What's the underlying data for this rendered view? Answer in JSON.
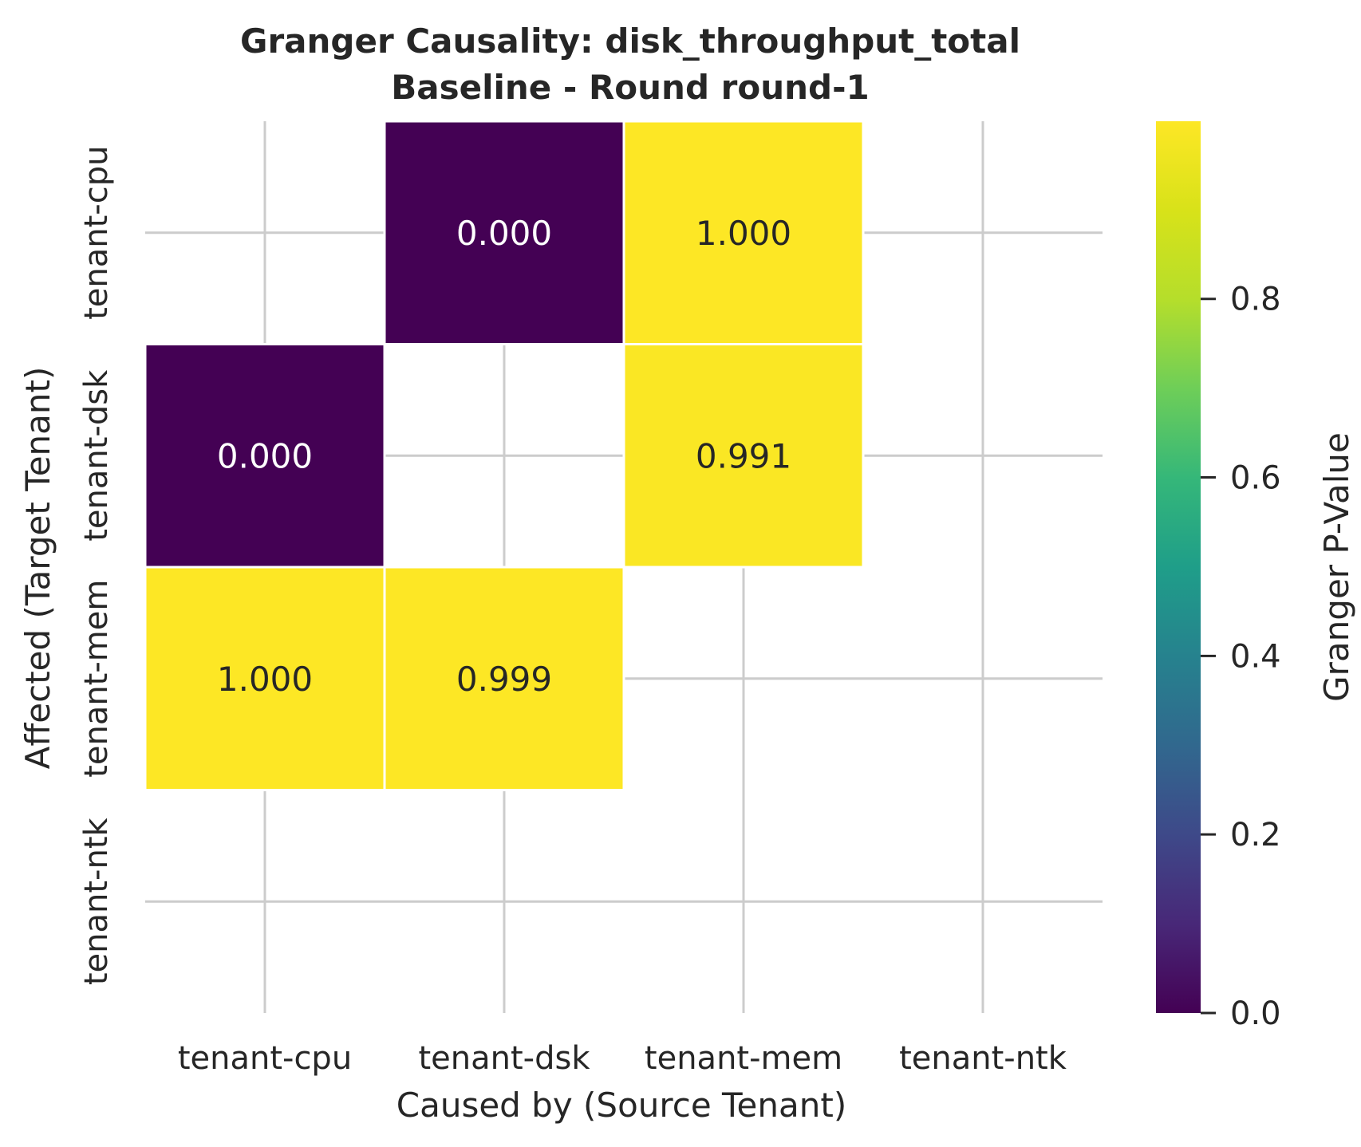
{
  "chart_data": {
    "type": "heatmap",
    "title": "Granger Causality: disk_throughput_total",
    "subtitle": "Baseline - Round round-1",
    "xlabel": "Caused by (Source Tenant)",
    "ylabel": "Affected (Target Tenant)",
    "x_categories": [
      "tenant-cpu",
      "tenant-dsk",
      "tenant-mem",
      "tenant-ntk"
    ],
    "y_categories": [
      "tenant-cpu",
      "tenant-dsk",
      "tenant-mem",
      "tenant-ntk"
    ],
    "values": [
      [
        null,
        0.0,
        1.0,
        null
      ],
      [
        0.0,
        null,
        0.991,
        null
      ],
      [
        1.0,
        0.999,
        null,
        null
      ],
      [
        null,
        null,
        null,
        null
      ]
    ],
    "value_labels": [
      [
        null,
        "0.000",
        "1.000",
        null
      ],
      [
        "0.000",
        null,
        "0.991",
        null
      ],
      [
        "1.000",
        "0.999",
        null,
        null
      ],
      [
        null,
        null,
        null,
        null
      ]
    ],
    "colormap": "viridis",
    "vmin": 0.0,
    "vmax": 0.999,
    "grid": true,
    "colorbar": {
      "label": "Granger P-Value",
      "ticks": [
        0.0,
        0.2,
        0.4,
        0.6,
        0.8
      ],
      "tick_labels": [
        "0.0",
        "0.2",
        "0.4",
        "0.6",
        "0.8"
      ],
      "placement": "right"
    }
  }
}
